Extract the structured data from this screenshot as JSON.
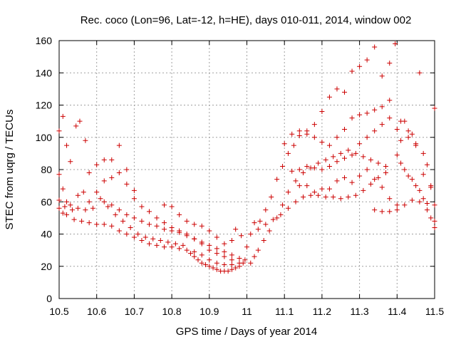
{
  "chart_data": {
    "type": "scatter",
    "title": "Rec. coco (Lon=96, Lat=-12, h=HE), days 010-011, 2014, window 002",
    "xlabel": "GPS time / Days of year 2014",
    "ylabel": "STEC from uqrg / TECUs",
    "xlim": [
      10.5,
      11.5
    ],
    "ylim": [
      0,
      160
    ],
    "xticks": [
      "10.5",
      "10.6",
      "10.7",
      "10.8",
      "10.9",
      "11",
      "11.1",
      "11.2",
      "11.3",
      "11.4",
      "11.5"
    ],
    "yticks": [
      "0",
      "20",
      "40",
      "60",
      "80",
      "100",
      "120",
      "140",
      "160"
    ],
    "grid": true,
    "marker": "plus",
    "color": "#cc0000",
    "points": [
      [
        10.5,
        104
      ],
      [
        10.51,
        113
      ],
      [
        10.52,
        95
      ],
      [
        10.53,
        85
      ],
      [
        10.545,
        107
      ],
      [
        10.555,
        110
      ],
      [
        10.57,
        98
      ],
      [
        10.5,
        77
      ],
      [
        10.51,
        68
      ],
      [
        10.52,
        60
      ],
      [
        10.535,
        55
      ],
      [
        10.55,
        64
      ],
      [
        10.565,
        66
      ],
      [
        10.58,
        78
      ],
      [
        10.6,
        83
      ],
      [
        10.62,
        86
      ],
      [
        10.64,
        86
      ],
      [
        10.66,
        95
      ],
      [
        10.68,
        80
      ],
      [
        10.7,
        67
      ],
      [
        10.5,
        61
      ],
      [
        10.515,
        57
      ],
      [
        10.53,
        58
      ],
      [
        10.55,
        56
      ],
      [
        10.57,
        55
      ],
      [
        10.59,
        56
      ],
      [
        10.61,
        62
      ],
      [
        10.63,
        57
      ],
      [
        10.65,
        52
      ],
      [
        10.67,
        48
      ],
      [
        10.69,
        44
      ],
      [
        10.71,
        40
      ],
      [
        10.73,
        38
      ],
      [
        10.75,
        37
      ],
      [
        10.77,
        36
      ],
      [
        10.79,
        35
      ],
      [
        10.81,
        34
      ],
      [
        10.83,
        33
      ],
      [
        10.5,
        56
      ],
      [
        10.51,
        53
      ],
      [
        10.52,
        52
      ],
      [
        10.54,
        49
      ],
      [
        10.56,
        48
      ],
      [
        10.58,
        47
      ],
      [
        10.6,
        46
      ],
      [
        10.62,
        46
      ],
      [
        10.64,
        45
      ],
      [
        10.66,
        42
      ],
      [
        10.68,
        40
      ],
      [
        10.7,
        38
      ],
      [
        10.72,
        36
      ],
      [
        10.74,
        34
      ],
      [
        10.76,
        33
      ],
      [
        10.78,
        32
      ],
      [
        10.8,
        32
      ],
      [
        10.82,
        31
      ],
      [
        10.84,
        30
      ],
      [
        10.86,
        29
      ],
      [
        10.58,
        60
      ],
      [
        10.6,
        66
      ],
      [
        10.62,
        73
      ],
      [
        10.64,
        75
      ],
      [
        10.66,
        78
      ],
      [
        10.68,
        71
      ],
      [
        10.7,
        62
      ],
      [
        10.72,
        57
      ],
      [
        10.74,
        54
      ],
      [
        10.76,
        50
      ],
      [
        10.78,
        47
      ],
      [
        10.8,
        44
      ],
      [
        10.82,
        42
      ],
      [
        10.84,
        40
      ],
      [
        10.86,
        37
      ],
      [
        10.88,
        34
      ],
      [
        10.9,
        30
      ],
      [
        10.92,
        28
      ],
      [
        10.94,
        26
      ],
      [
        10.96,
        24
      ],
      [
        10.62,
        60
      ],
      [
        10.64,
        58
      ],
      [
        10.66,
        55
      ],
      [
        10.68,
        52
      ],
      [
        10.7,
        50
      ],
      [
        10.72,
        48
      ],
      [
        10.74,
        46
      ],
      [
        10.76,
        45
      ],
      [
        10.78,
        43
      ],
      [
        10.8,
        42
      ],
      [
        10.82,
        41
      ],
      [
        10.84,
        39
      ],
      [
        10.86,
        37
      ],
      [
        10.88,
        35
      ],
      [
        10.9,
        33
      ],
      [
        10.92,
        31
      ],
      [
        10.94,
        29
      ],
      [
        10.96,
        27
      ],
      [
        10.98,
        25
      ],
      [
        10.78,
        58
      ],
      [
        10.8,
        57
      ],
      [
        10.82,
        52
      ],
      [
        10.84,
        48
      ],
      [
        10.86,
        46
      ],
      [
        10.88,
        45
      ],
      [
        10.9,
        42
      ],
      [
        10.92,
        38
      ],
      [
        10.94,
        34
      ],
      [
        10.96,
        36
      ],
      [
        10.97,
        43
      ],
      [
        10.985,
        39
      ],
      [
        10.85,
        28
      ],
      [
        10.86,
        26
      ],
      [
        10.87,
        24
      ],
      [
        10.88,
        22
      ],
      [
        10.89,
        21
      ],
      [
        10.9,
        20
      ],
      [
        10.91,
        19
      ],
      [
        10.92,
        18
      ],
      [
        10.93,
        17
      ],
      [
        10.94,
        17
      ],
      [
        10.95,
        17
      ],
      [
        10.96,
        18
      ],
      [
        10.97,
        19
      ],
      [
        10.98,
        20
      ],
      [
        10.99,
        22
      ],
      [
        10.88,
        27
      ],
      [
        10.9,
        24
      ],
      [
        10.92,
        22
      ],
      [
        10.94,
        21
      ],
      [
        10.96,
        21
      ],
      [
        10.98,
        22
      ],
      [
        10.995,
        24
      ],
      [
        11.0,
        32
      ],
      [
        11.01,
        40
      ],
      [
        11.02,
        47
      ],
      [
        11.035,
        48
      ],
      [
        11.05,
        55
      ],
      [
        11.065,
        63
      ],
      [
        11.08,
        74
      ],
      [
        11.095,
        82
      ],
      [
        11.11,
        90
      ],
      [
        11.125,
        95
      ],
      [
        11.14,
        101
      ],
      [
        11.16,
        104
      ],
      [
        11.18,
        108
      ],
      [
        11.2,
        116
      ],
      [
        11.22,
        125
      ],
      [
        11.24,
        130
      ],
      [
        11.26,
        128
      ],
      [
        11.28,
        141
      ],
      [
        11.3,
        144
      ],
      [
        11.32,
        148
      ],
      [
        11.34,
        156
      ],
      [
        11.36,
        138
      ],
      [
        11.38,
        146
      ],
      [
        11.395,
        158
      ],
      [
        11.01,
        22
      ],
      [
        11.02,
        26
      ],
      [
        11.03,
        30
      ],
      [
        11.045,
        36
      ],
      [
        11.06,
        42
      ],
      [
        11.08,
        50
      ],
      [
        11.095,
        58
      ],
      [
        11.11,
        66
      ],
      [
        11.13,
        73
      ],
      [
        11.15,
        78
      ],
      [
        11.17,
        81
      ],
      [
        11.19,
        84
      ],
      [
        11.21,
        86
      ],
      [
        11.23,
        88
      ],
      [
        11.25,
        90
      ],
      [
        11.27,
        92
      ],
      [
        11.29,
        90
      ],
      [
        11.31,
        88
      ],
      [
        11.33,
        86
      ],
      [
        11.35,
        84
      ],
      [
        11.37,
        82
      ],
      [
        11.03,
        43
      ],
      [
        11.05,
        46
      ],
      [
        11.07,
        49
      ],
      [
        11.09,
        52
      ],
      [
        11.11,
        56
      ],
      [
        11.13,
        60
      ],
      [
        11.15,
        63
      ],
      [
        11.17,
        64
      ],
      [
        11.19,
        64
      ],
      [
        11.21,
        63
      ],
      [
        11.23,
        63
      ],
      [
        11.25,
        62
      ],
      [
        11.27,
        63
      ],
      [
        11.29,
        64
      ],
      [
        11.31,
        67
      ],
      [
        11.33,
        71
      ],
      [
        11.35,
        75
      ],
      [
        11.37,
        78
      ],
      [
        11.1,
        96
      ],
      [
        11.12,
        102
      ],
      [
        11.14,
        104
      ],
      [
        11.16,
        102
      ],
      [
        11.18,
        100
      ],
      [
        11.2,
        97
      ],
      [
        11.22,
        95
      ],
      [
        11.24,
        100
      ],
      [
        11.26,
        105
      ],
      [
        11.28,
        112
      ],
      [
        11.3,
        114
      ],
      [
        11.32,
        115
      ],
      [
        11.34,
        117
      ],
      [
        11.36,
        119
      ],
      [
        11.38,
        123
      ],
      [
        11.12,
        79
      ],
      [
        11.14,
        80
      ],
      [
        11.16,
        82
      ],
      [
        11.18,
        81
      ],
      [
        11.2,
        80
      ],
      [
        11.22,
        82
      ],
      [
        11.24,
        85
      ],
      [
        11.26,
        87
      ],
      [
        11.28,
        89
      ],
      [
        11.3,
        96
      ],
      [
        11.32,
        100
      ],
      [
        11.34,
        104
      ],
      [
        11.36,
        108
      ],
      [
        11.38,
        112
      ],
      [
        11.14,
        70
      ],
      [
        11.16,
        70
      ],
      [
        11.18,
        66
      ],
      [
        11.2,
        68
      ],
      [
        11.22,
        68
      ],
      [
        11.24,
        73
      ],
      [
        11.26,
        75
      ],
      [
        11.28,
        72
      ],
      [
        11.3,
        76
      ],
      [
        11.32,
        80
      ],
      [
        11.34,
        74
      ],
      [
        11.36,
        69
      ],
      [
        11.38,
        62
      ],
      [
        11.4,
        58
      ],
      [
        11.34,
        55
      ],
      [
        11.36,
        54
      ],
      [
        11.38,
        54
      ],
      [
        11.4,
        55
      ],
      [
        11.42,
        58
      ],
      [
        11.44,
        61
      ],
      [
        11.46,
        60
      ],
      [
        11.48,
        59
      ],
      [
        11.5,
        58
      ],
      [
        11.4,
        105
      ],
      [
        11.41,
        98
      ],
      [
        11.42,
        110
      ],
      [
        11.43,
        104
      ],
      [
        11.44,
        102
      ],
      [
        11.45,
        96
      ],
      [
        11.46,
        140
      ],
      [
        11.47,
        90
      ],
      [
        11.48,
        83
      ],
      [
        11.49,
        70
      ],
      [
        11.5,
        48
      ],
      [
        11.4,
        89
      ],
      [
        11.41,
        84
      ],
      [
        11.42,
        80
      ],
      [
        11.43,
        76
      ],
      [
        11.44,
        74
      ],
      [
        11.45,
        70
      ],
      [
        11.46,
        67
      ],
      [
        11.47,
        62
      ],
      [
        11.48,
        55
      ],
      [
        11.49,
        50
      ],
      [
        11.5,
        44
      ],
      [
        11.41,
        110
      ],
      [
        11.43,
        100
      ],
      [
        11.45,
        95
      ],
      [
        11.47,
        77
      ],
      [
        11.49,
        69
      ],
      [
        11.5,
        118
      ]
    ]
  }
}
